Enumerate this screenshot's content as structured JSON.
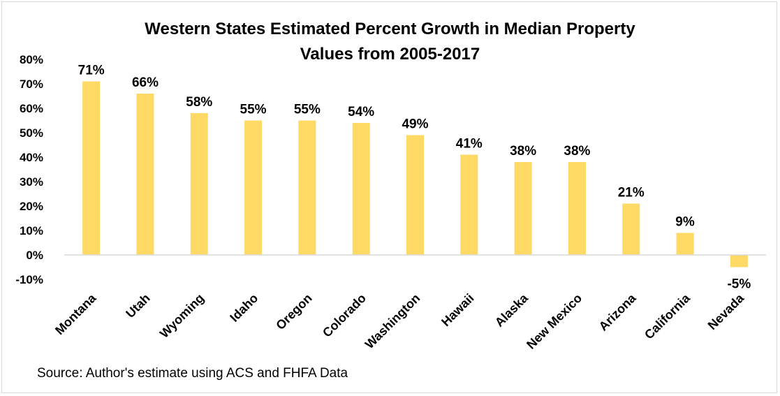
{
  "chart_data": {
    "type": "bar",
    "title_lines": [
      "Western States Estimated Percent Growth in Median Property",
      "Values from 2005-2017"
    ],
    "categories": [
      "Montana",
      "Utah",
      "Wyoming",
      "Idaho",
      "Oregon",
      "Colorado",
      "Washington",
      "Hawaii",
      "Alaska",
      "New Mexico",
      "Arizona",
      "California",
      "Nevada"
    ],
    "values": [
      71,
      66,
      58,
      55,
      55,
      54,
      49,
      41,
      38,
      38,
      21,
      9,
      -5
    ],
    "data_labels": [
      "71%",
      "66%",
      "58%",
      "55%",
      "55%",
      "54%",
      "49%",
      "41%",
      "38%",
      "38%",
      "21%",
      "9%",
      "-5%"
    ],
    "y_ticks": [
      80,
      70,
      60,
      50,
      40,
      30,
      20,
      10,
      0,
      -10
    ],
    "y_tick_labels": [
      "80%",
      "70%",
      "60%",
      "50%",
      "40%",
      "30%",
      "20%",
      "10%",
      "0%",
      "-10%"
    ],
    "ylim": [
      -10,
      80
    ],
    "grid": false,
    "legend": "none",
    "bar_color": "#ffd966",
    "axis_color": "#d9d9d9",
    "source": "Source: Author's estimate using ACS and FHFA Data"
  }
}
